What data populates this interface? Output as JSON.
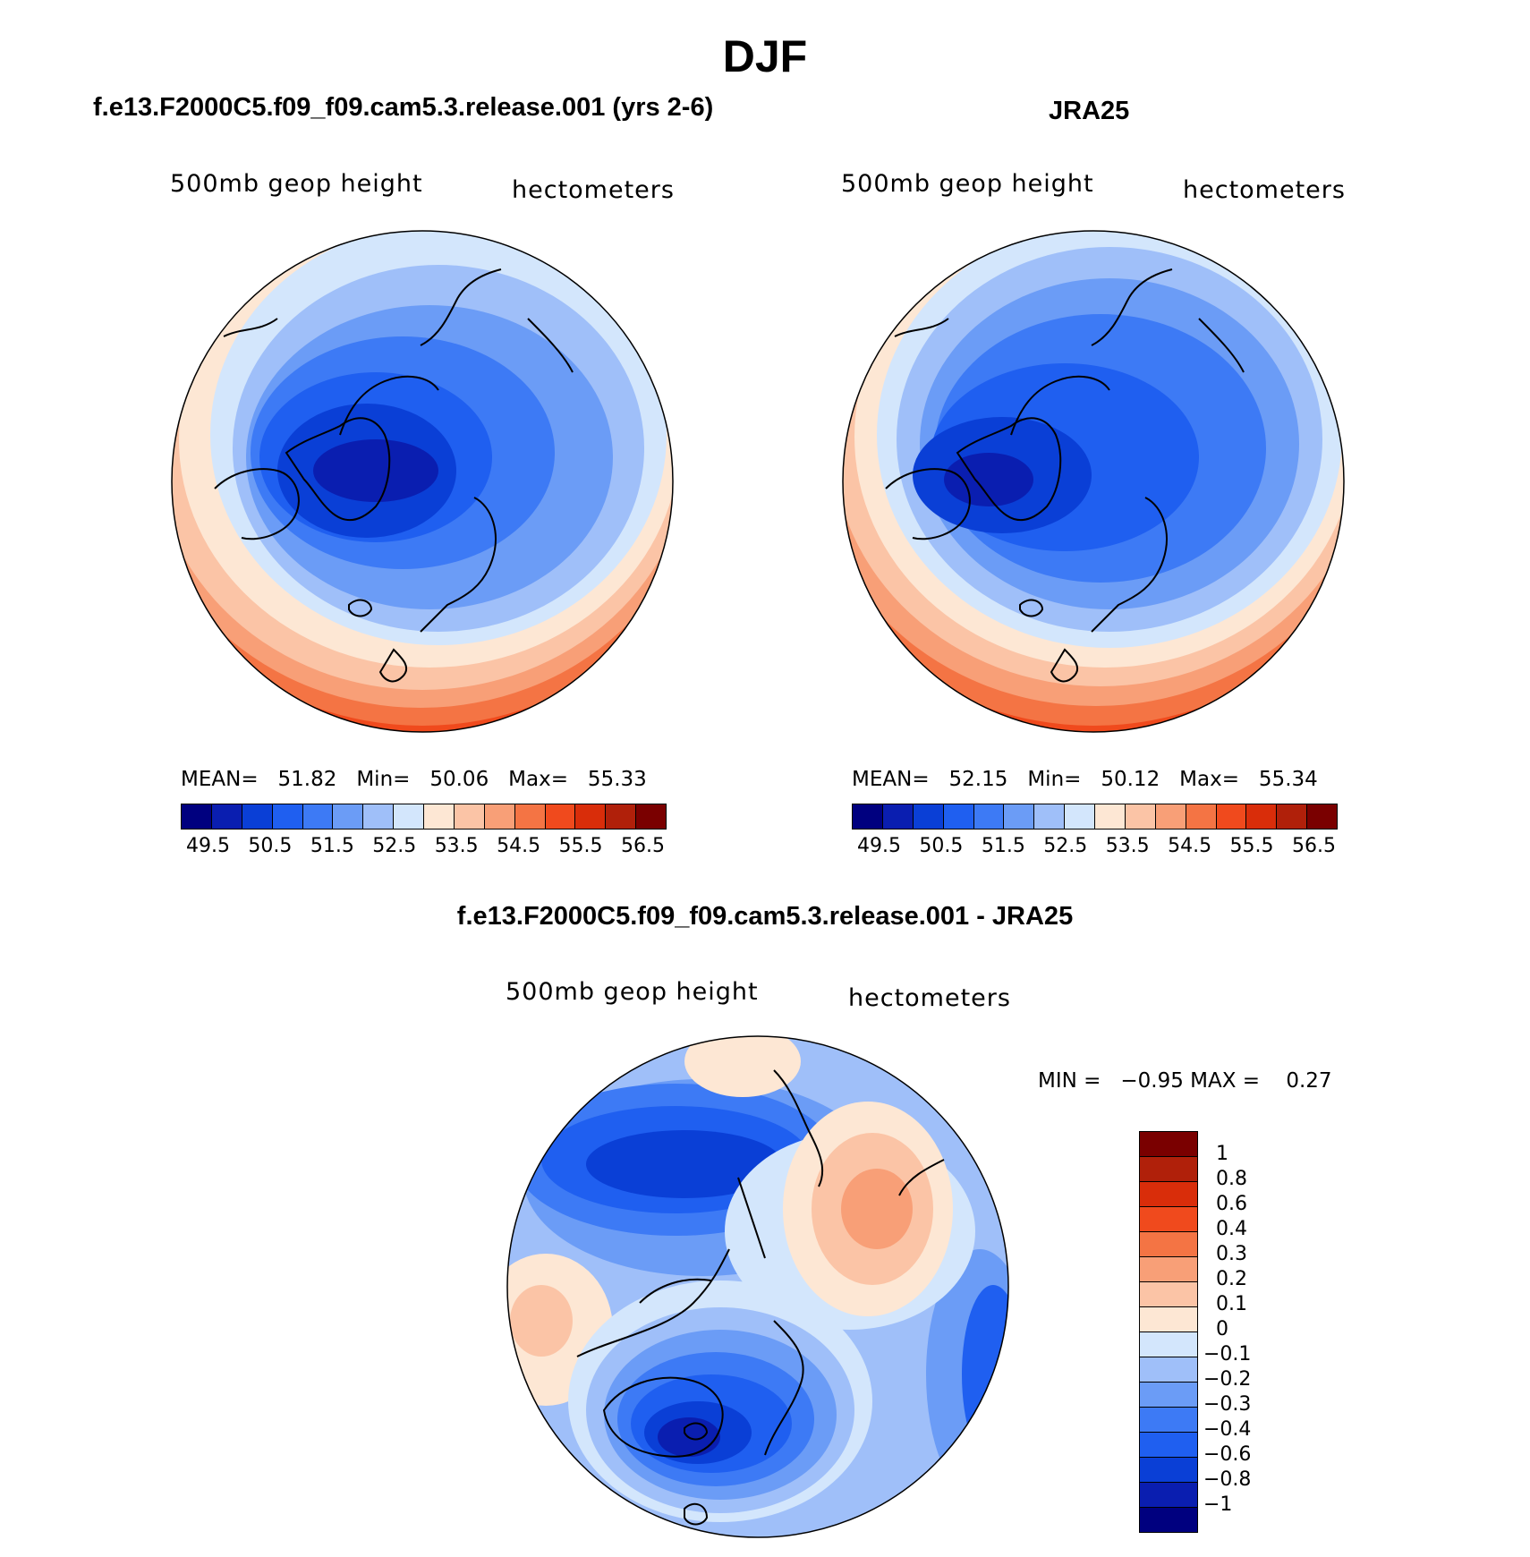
{
  "title": "DJF",
  "panels": [
    {
      "id": "model",
      "case_title": "f.e13.F2000C5.f09_f09.cam5.3.release.001 (yrs 2-6)",
      "variable": "500mb geop height",
      "units": "hectometers",
      "stats": {
        "mean_label": "MEAN=",
        "mean": "51.82",
        "min_label": "Min=",
        "min": "50.06",
        "max_label": "Max=",
        "max": "55.33"
      }
    },
    {
      "id": "obs",
      "case_title": "JRA25",
      "variable": "500mb geop height",
      "units": "hectometers",
      "stats": {
        "mean_label": "MEAN=",
        "mean": "52.15",
        "min_label": "Min=",
        "min": "50.12",
        "max_label": "Max=",
        "max": "55.34"
      }
    },
    {
      "id": "diff",
      "case_title": "f.e13.F2000C5.f09_f09.cam5.3.release.001 - JRA25",
      "variable": "500mb geop height",
      "units": "hectometers",
      "stats": {
        "min_label": "MIN =",
        "min": "−0.95",
        "max_label": "MAX =",
        "max": "0.27"
      }
    }
  ],
  "colorbar_main": {
    "colors": [
      "#00007f",
      "#0a1eb0",
      "#0a3fd6",
      "#1f5ff0",
      "#3d7af5",
      "#6b9cf6",
      "#9fbff9",
      "#d3e6fc",
      "#fde7d4",
      "#fbc4a6",
      "#f89f77",
      "#f47444",
      "#f04a1d",
      "#d92d0a",
      "#b0200a",
      "#7a0000"
    ],
    "labels": [
      "49.5",
      "50.5",
      "51.5",
      "52.5",
      "53.5",
      "54.5",
      "55.5",
      "56.5"
    ]
  },
  "colorbar_diff": {
    "colors": [
      "#7a0000",
      "#b0200a",
      "#d92d0a",
      "#f04a1d",
      "#f47444",
      "#f89f77",
      "#fbc4a6",
      "#fde7d4",
      "#d3e6fc",
      "#9fbff9",
      "#6b9cf6",
      "#3d7af5",
      "#1f5ff0",
      "#0a3fd6",
      "#0a1eb0",
      "#00007f"
    ],
    "labels": [
      "1",
      "0.8",
      "0.6",
      "0.4",
      "0.3",
      "0.2",
      "0.1",
      "0",
      "−0.1",
      "−0.2",
      "−0.3",
      "−0.4",
      "−0.6",
      "−0.8",
      "−1"
    ]
  }
}
